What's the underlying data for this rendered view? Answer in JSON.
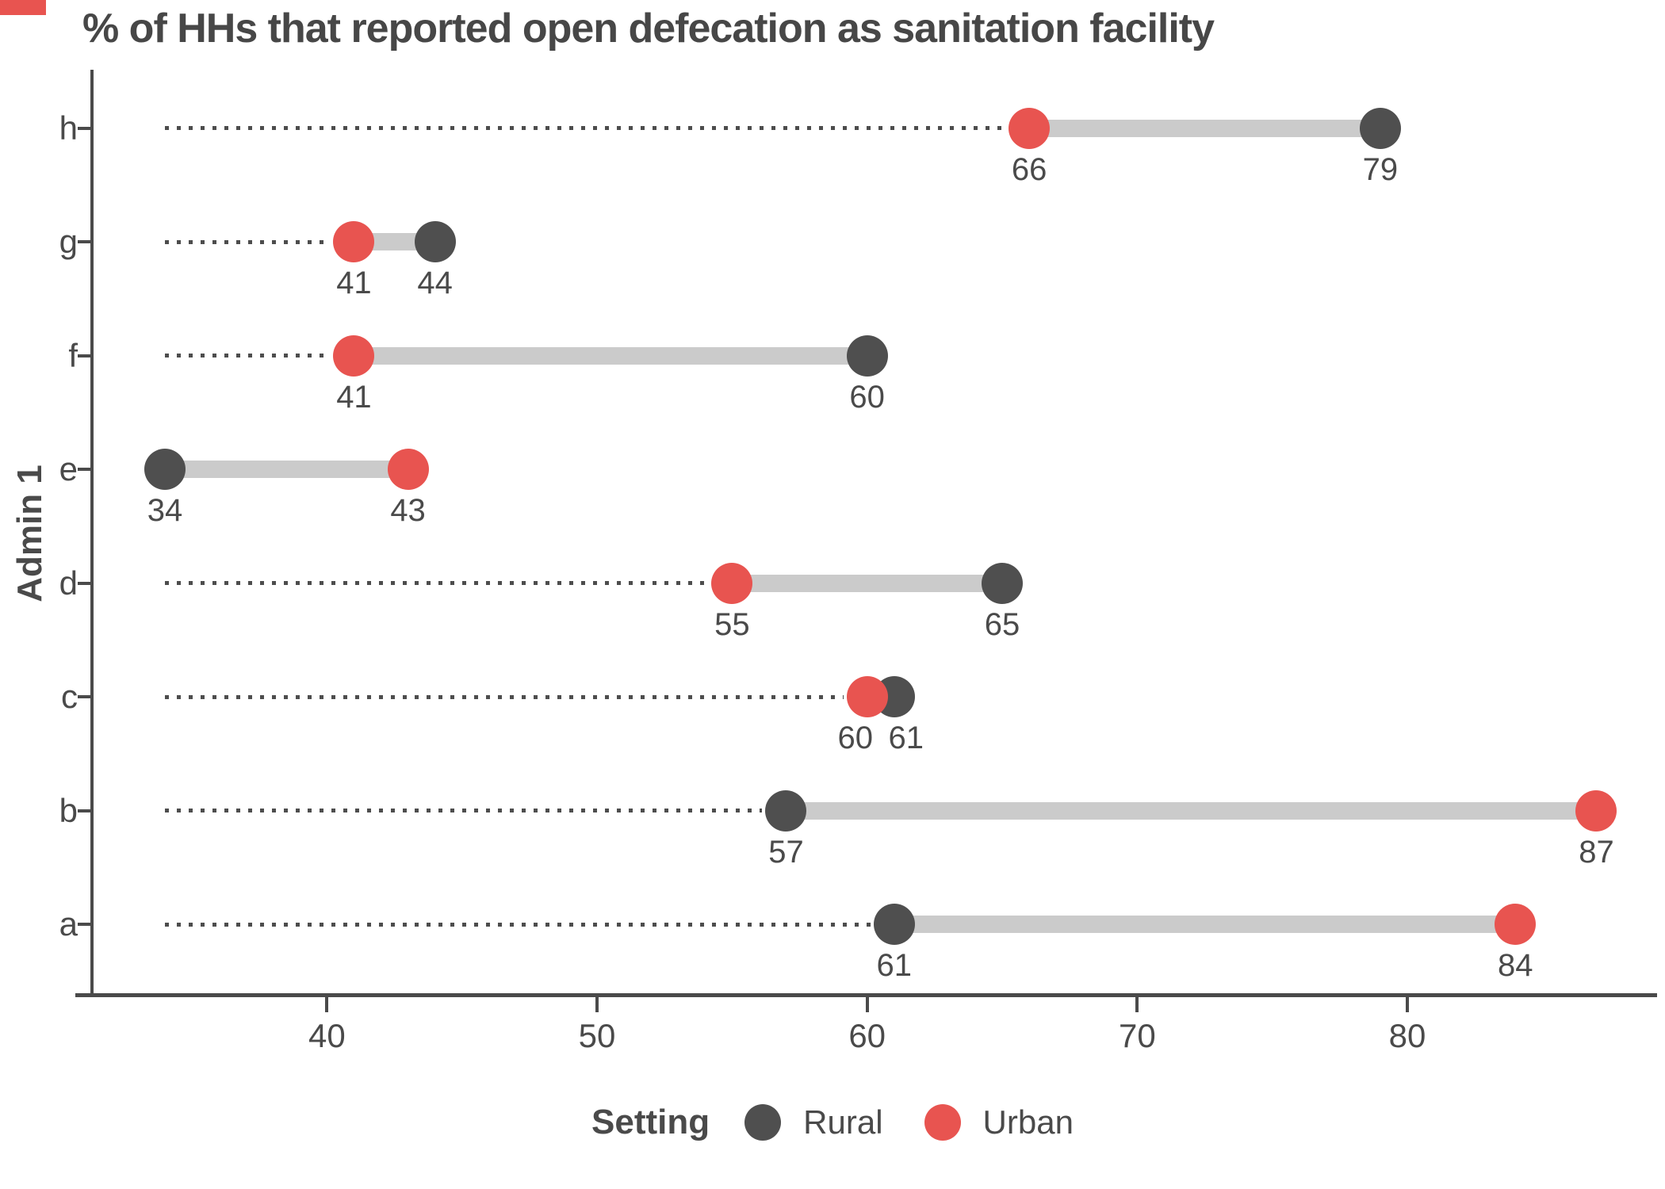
{
  "chart_data": {
    "type": "dumbbell",
    "orientation": "horizontal",
    "title": "% of HHs that reported open defecation as sanitation facility",
    "ylabel": "Admin 1",
    "xlabel": "",
    "categories": [
      "h",
      "g",
      "f",
      "e",
      "d",
      "c",
      "b",
      "a"
    ],
    "series": [
      {
        "name": "Rural",
        "color": "#4F4F4F",
        "values": [
          79,
          44,
          60,
          34,
          65,
          61,
          57,
          61
        ]
      },
      {
        "name": "Urban",
        "color": "#E85450",
        "values": [
          66,
          41,
          41,
          43,
          55,
          60,
          87,
          84
        ]
      }
    ],
    "xticks": [
      40,
      50,
      60,
      70,
      80
    ],
    "xlim": [
      31.3,
      89.1
    ],
    "grid": false,
    "legend_title": "Setting",
    "legend_position": "bottom",
    "value_labels": true,
    "connector_color": "#CBCBCB",
    "leader_line_color": "#4D4D4D",
    "axis_color": "#4A4A4A",
    "text_color": "#4A4A4A",
    "accent_color": "#E85450"
  }
}
